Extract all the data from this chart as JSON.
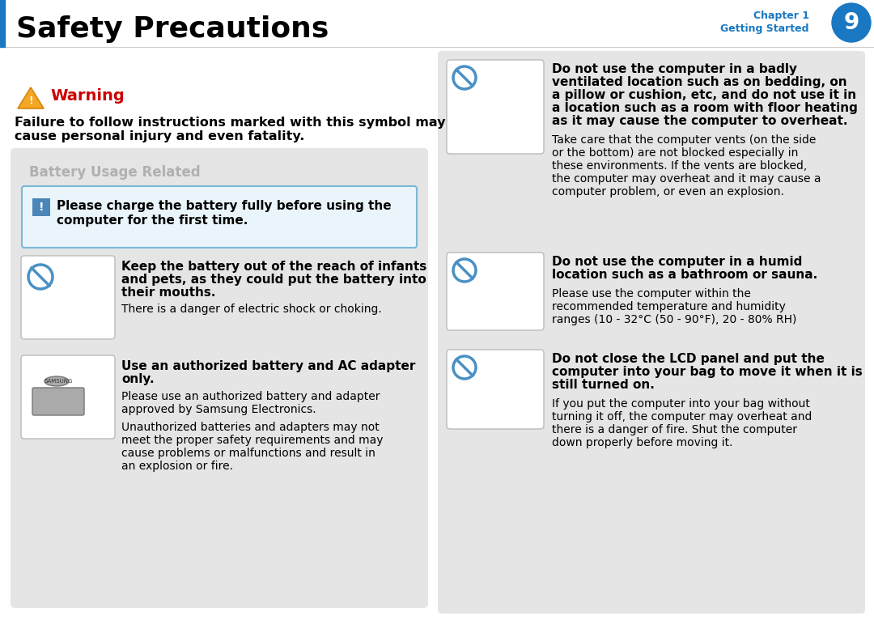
{
  "bg_color": "#ffffff",
  "header_line_color": "#1a78c2",
  "header_title": "Safety Precautions",
  "chapter_text": "Chapter 1",
  "chapter_sub": "Getting Started",
  "chapter_num": "9",
  "chapter_circle_color": "#1a78c2",
  "warning_title": "Warning",
  "warning_color": "#cc0000",
  "warning_triangle_color": "#f5a623",
  "warning_body1": "Failure to follow instructions marked with this symbol may",
  "warning_body2": "cause personal injury and even fatality.",
  "battery_section_bg": "#e5e5e5",
  "battery_section_title": "Battery Usage Related",
  "charge_box_bg": "#eaf5fb",
  "charge_box_border": "#7ab8d9",
  "charge_text1": "Please charge the battery fully before using the",
  "charge_text2": "computer for the first time.",
  "item1_bold1": "Keep the battery out of the reach of infants",
  "item1_bold2": "and pets, as they could put the battery into",
  "item1_bold3": "their mouths.",
  "item1_normal": "There is a danger of electric shock or choking.",
  "item2_bold1": "Use an authorized battery and AC adapter",
  "item2_bold2": "only.",
  "item2_normal1a": "Please use an authorized battery and adapter",
  "item2_normal1b": "approved by Samsung Electronics.",
  "item2_normal2a": "Unauthorized batteries and adapters may not",
  "item2_normal2b": "meet the proper safety requirements and may",
  "item2_normal2c": "cause problems or malfunctions and result in",
  "item2_normal2d": "an explosion or fire.",
  "right_item1_bold1": "Do not use the computer in a badly",
  "right_item1_bold2": "ventilated location such as on bedding, on",
  "right_item1_bold3": "a pillow or cushion, etc, and do not use it in",
  "right_item1_bold4": "a location such as a room with floor heating",
  "right_item1_bold5": "as it may cause the computer to overheat.",
  "right_item1_normal1": "Take care that the computer vents (on the side",
  "right_item1_normal2": "or the bottom) are not blocked especially in",
  "right_item1_normal3": "these environments. If the vents are blocked,",
  "right_item1_normal4": "the computer may overheat and it may cause a",
  "right_item1_normal5": "computer problem, or even an explosion.",
  "right_item2_bold1": "Do not use the computer in a humid",
  "right_item2_bold2": "location such as a bathroom or sauna.",
  "right_item2_normal1": "Please use the computer within the",
  "right_item2_normal2": "recommended temperature and humidity",
  "right_item2_normal3": "ranges (10 - 32°C (50 - 90°F), 20 - 80% RH)",
  "right_item3_bold1": "Do not close the LCD panel and put the",
  "right_item3_bold2": "computer into your bag to move it when it is",
  "right_item3_bold3": "still turned on.",
  "right_item3_normal1": "If you put the computer into your bag without",
  "right_item3_normal2": "turning it off, the computer may overheat and",
  "right_item3_normal3": "there is a danger of fire. Shut the computer",
  "right_item3_normal4": "down properly before moving it.",
  "right_panel_bg": "#e5e5e5",
  "icon_border": "#bbbbbb",
  "no_icon_color": "#4a90c4"
}
